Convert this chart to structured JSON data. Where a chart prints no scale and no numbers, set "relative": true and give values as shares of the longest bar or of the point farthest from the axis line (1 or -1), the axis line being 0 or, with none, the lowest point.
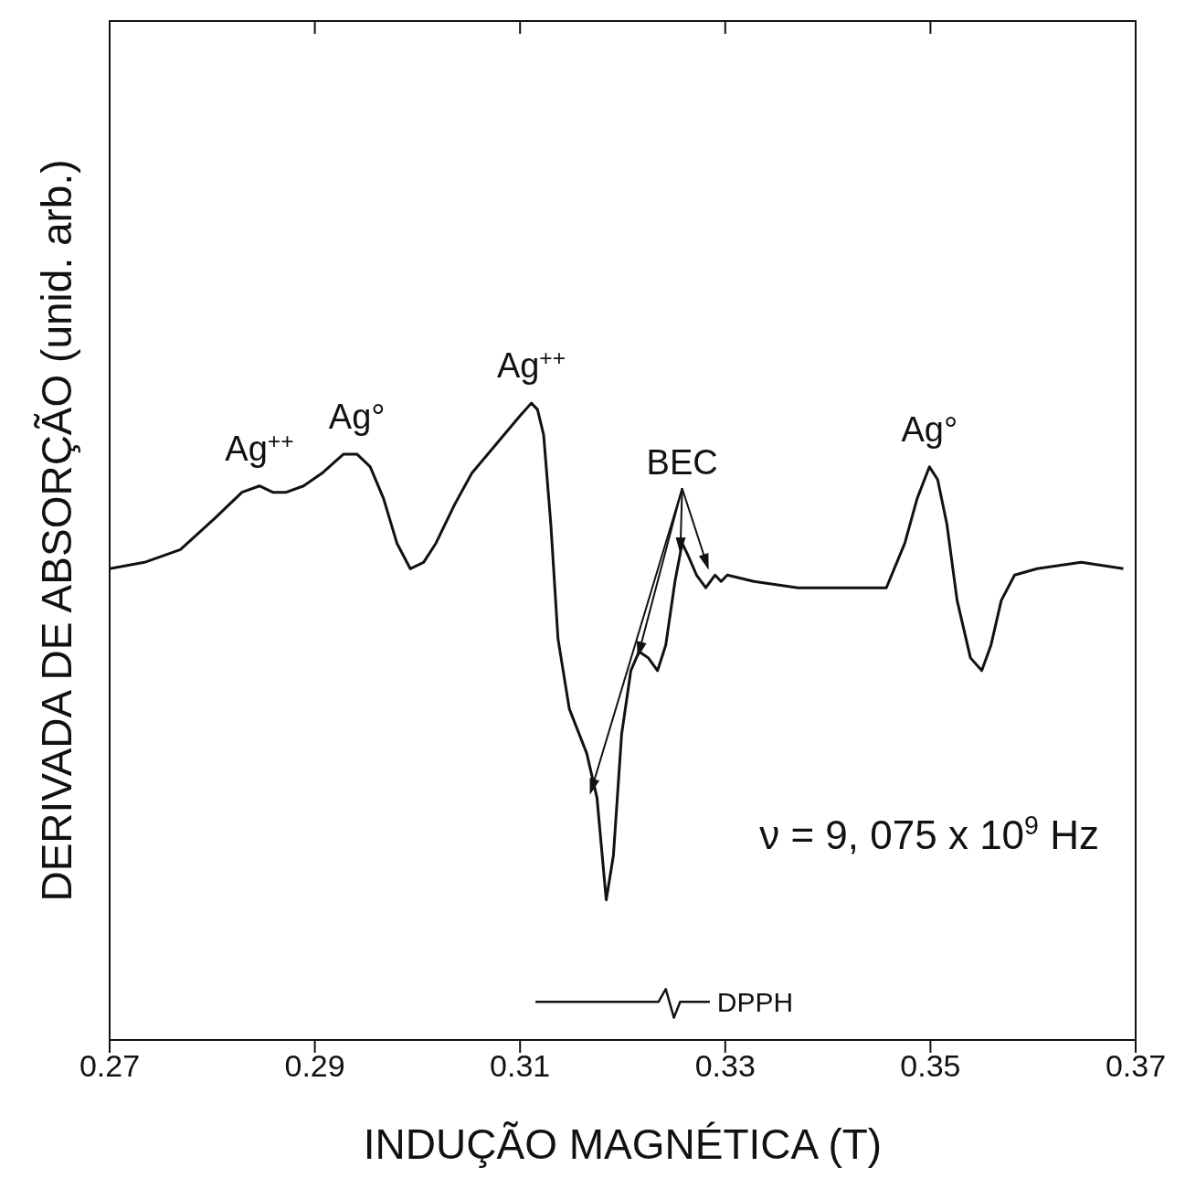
{
  "chart_data": {
    "type": "line",
    "relative": true,
    "xlabel": "INDUÇÃO MAGNÉTICA (T)",
    "ylabel": "DERIVADA DE ABSORÇÃO (unid. arb.)",
    "xlim": [
      0.27,
      0.37
    ],
    "xticks": [
      0.27,
      0.29,
      0.31,
      0.33,
      0.35,
      0.37
    ],
    "marker": "none",
    "line_style": "solid",
    "x": [
      0.27,
      0.2734,
      0.2769,
      0.2803,
      0.2829,
      0.2846,
      0.2859,
      0.2872,
      0.2889,
      0.2907,
      0.2928,
      0.2941,
      0.2954,
      0.2967,
      0.298,
      0.2993,
      0.3006,
      0.3018,
      0.3036,
      0.3053,
      0.3079,
      0.31,
      0.3111,
      0.3117,
      0.3123,
      0.313,
      0.3137,
      0.3148,
      0.3165,
      0.3175,
      0.3184,
      0.3191,
      0.3199,
      0.3208,
      0.3216,
      0.3225,
      0.3234,
      0.3242,
      0.3251,
      0.3258,
      0.3264,
      0.3272,
      0.3281,
      0.329,
      0.3296,
      0.3302,
      0.3328,
      0.3371,
      0.3414,
      0.3457,
      0.3475,
      0.3487,
      0.3499,
      0.3507,
      0.3516,
      0.3526,
      0.3539,
      0.355,
      0.3559,
      0.3569,
      0.3582,
      0.3604,
      0.3647,
      0.3688
    ],
    "series": [
      {
        "color": "#111111",
        "values": [
          0.74,
          0.75,
          0.77,
          0.82,
          0.86,
          0.87,
          0.86,
          0.86,
          0.87,
          0.89,
          0.92,
          0.92,
          0.9,
          0.85,
          0.78,
          0.74,
          0.75,
          0.78,
          0.84,
          0.89,
          0.94,
          0.98,
          1.0,
          0.99,
          0.95,
          0.81,
          0.63,
          0.52,
          0.45,
          0.38,
          0.22,
          0.29,
          0.48,
          0.58,
          0.61,
          0.6,
          0.58,
          0.62,
          0.72,
          0.78,
          0.76,
          0.73,
          0.71,
          0.73,
          0.72,
          0.73,
          0.72,
          0.71,
          0.71,
          0.71,
          0.78,
          0.85,
          0.9,
          0.88,
          0.81,
          0.69,
          0.6,
          0.58,
          0.62,
          0.69,
          0.73,
          0.74,
          0.75,
          0.74
        ]
      }
    ],
    "annotations": [
      {
        "text": "Ag$^{++}$",
        "x": 0.2846,
        "y": 0.87
      },
      {
        "text": "Ag°",
        "x": 0.2941,
        "y": 0.92
      },
      {
        "text": "Ag$^{++}$",
        "x": 0.3111,
        "y": 1.0
      },
      {
        "text": "BEC",
        "x": 0.3258,
        "y": 0.78
      },
      {
        "text": "Ag°",
        "x": 0.3499,
        "y": 0.9
      },
      "ν = 9, 075 x 10$^{9}$ Hz",
      "DPPH"
    ]
  }
}
